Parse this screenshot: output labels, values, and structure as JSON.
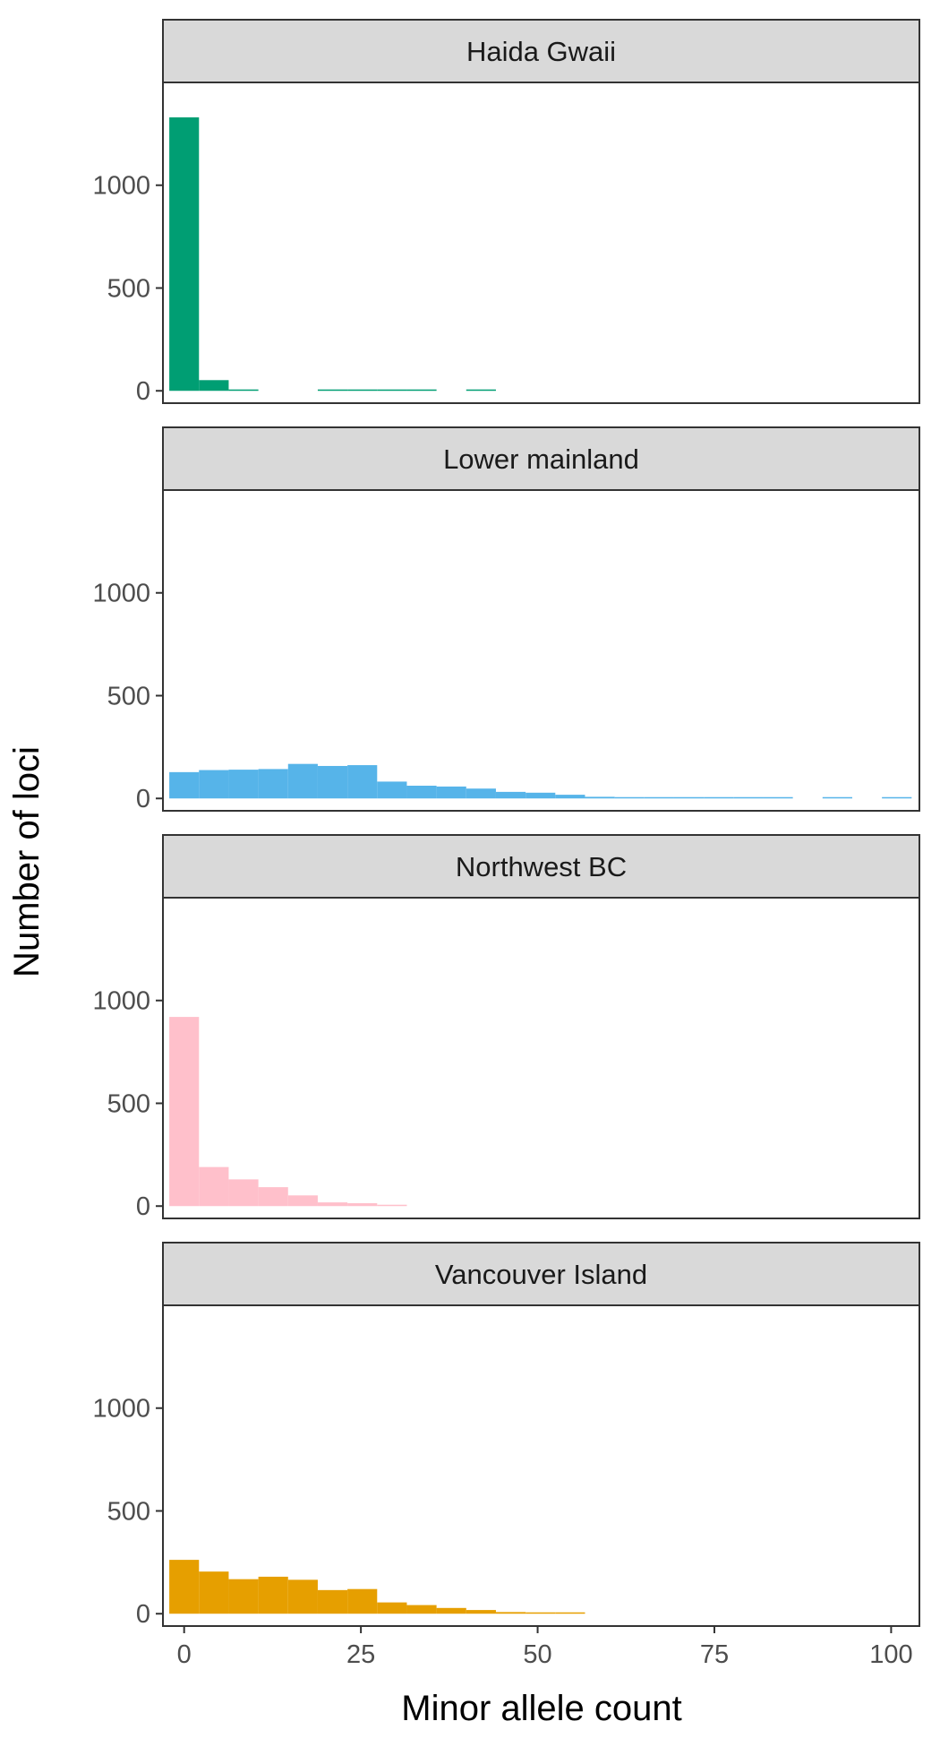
{
  "chart_data": {
    "type": "bar",
    "subtype": "faceted-histogram",
    "xlabel": "Minor allele count",
    "ylabel": "Number of loci",
    "xlim": [
      -3,
      104
    ],
    "ylim": [
      -60,
      1500
    ],
    "x_ticks": [
      0,
      25,
      50,
      75,
      100
    ],
    "y_ticks": [
      0,
      500,
      1000
    ],
    "bin_width": 4.2,
    "bin_start": -2.1,
    "grid": false,
    "legend": "none",
    "panels": [
      {
        "name": "Haida Gwaii",
        "color": "#009E73",
        "values": [
          1330,
          52,
          5,
          0,
          0,
          2,
          2,
          2,
          2,
          0,
          2,
          0,
          0,
          0,
          0,
          0,
          0,
          0,
          0,
          0,
          0,
          0,
          0,
          0,
          0
        ]
      },
      {
        "name": "Lower mainland",
        "color": "#56B4E9",
        "values": [
          128,
          138,
          140,
          143,
          168,
          158,
          162,
          82,
          62,
          58,
          48,
          32,
          28,
          18,
          8,
          6,
          5,
          5,
          4,
          4,
          3,
          0,
          3,
          0,
          3
        ]
      },
      {
        "name": "Northwest BC",
        "color": "#FFC0CB",
        "values": [
          920,
          190,
          130,
          92,
          52,
          18,
          14,
          6,
          0,
          0,
          0,
          0,
          0,
          0,
          0,
          0,
          0,
          0,
          0,
          0,
          0,
          0,
          0,
          0,
          0
        ]
      },
      {
        "name": "Vancouver Island",
        "color": "#E69F00",
        "values": [
          262,
          205,
          168,
          180,
          165,
          115,
          120,
          55,
          42,
          28,
          18,
          8,
          5,
          3,
          0,
          0,
          0,
          0,
          0,
          0,
          0,
          0,
          0,
          0,
          0
        ]
      }
    ]
  }
}
